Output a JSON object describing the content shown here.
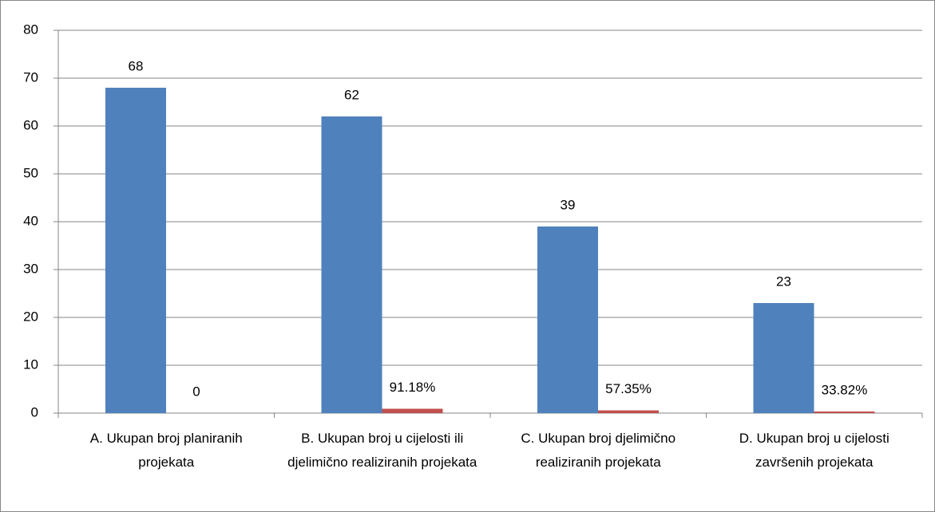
{
  "chart_data": {
    "type": "bar",
    "categories": [
      "A. Ukupan broj planiranih projekata",
      "B. Ukupan broj u cijelosti ili djelimično realiziranih projekata",
      "C. Ukupan broj djelimično realiziranih projekata",
      "D. Ukupan broj u cijelosti završenih projekata"
    ],
    "series": [
      {
        "color": "#4f81bd",
        "values": [
          68,
          62,
          39,
          23
        ]
      },
      {
        "color": "#c0504d",
        "values": [
          0,
          0.9118,
          0.5735,
          0.3382
        ],
        "value_labels": [
          "0",
          "91.18%",
          "57.35%",
          "33.82%"
        ]
      }
    ],
    "ylim": [
      0,
      80
    ],
    "yticks": [
      0,
      10,
      20,
      30,
      40,
      50,
      60,
      70,
      80
    ],
    "grid": true
  }
}
